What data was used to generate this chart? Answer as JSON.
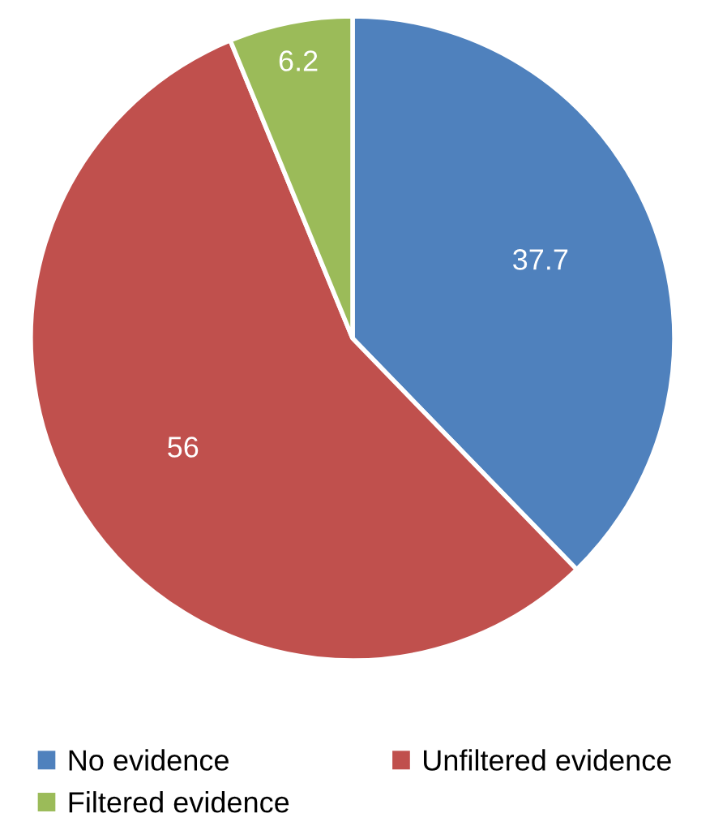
{
  "chart_data": {
    "type": "pie",
    "categories": [
      "No evidence",
      "Unfiltered evidence",
      "Filtered evidence"
    ],
    "values": [
      37.7,
      56,
      6.2
    ],
    "colors": [
      "#4f81bd",
      "#c0504d",
      "#9bbb59"
    ],
    "data_labels": true,
    "legend": "bottom"
  }
}
